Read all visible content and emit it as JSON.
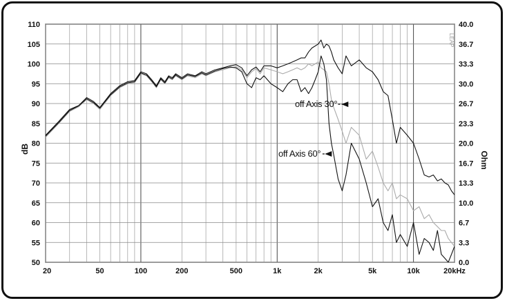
{
  "chart_data": {
    "type": "line",
    "title": "",
    "xlabel": "",
    "ylabel": "dB",
    "y2label": "Ohm",
    "x_scale": "log",
    "xlim": [
      20,
      20000
    ],
    "ylim": [
      50,
      110
    ],
    "y2lim": [
      0.0,
      40.0
    ],
    "grid": true,
    "x_ticks": [
      20,
      50,
      100,
      200,
      500,
      1000,
      2000,
      5000,
      10000,
      20000
    ],
    "x_tick_labels": [
      "20",
      "50",
      "100",
      "200",
      "500",
      "1k",
      "2k",
      "5k",
      "10k",
      "20kHz"
    ],
    "y_ticks": [
      50,
      55,
      60,
      65,
      70,
      75,
      80,
      85,
      90,
      95,
      100,
      105,
      110
    ],
    "y2_tick_labels": [
      "0.0",
      "3.3",
      "6.7",
      "10.0",
      "13.3",
      "16.7",
      "20.0",
      "23.3",
      "26.7",
      "30.0",
      "33.3",
      "36.7",
      "40.0"
    ],
    "corner_label": "LEAP",
    "annotations": [
      {
        "text": "off Axis 30°",
        "freq": 1350,
        "db": 89.8,
        "arrow_to_freq": 2800
      },
      {
        "text": "off Axis 60°",
        "freq": 1020,
        "db": 77.3,
        "arrow_to_freq": 2150
      }
    ],
    "series": [
      {
        "color": "#111111",
        "x": [
          20,
          25,
          30,
          35,
          40,
          45,
          50,
          60,
          70,
          80,
          90,
          100,
          110,
          120,
          130,
          140,
          150,
          160,
          170,
          180,
          200,
          220,
          250,
          280,
          300,
          350,
          400,
          450,
          500,
          550,
          600,
          650,
          700,
          750,
          800,
          900,
          1000,
          1100,
          1200,
          1300,
          1400,
          1500,
          1600,
          1700,
          1800,
          1900,
          2000,
          2100,
          2200,
          2300,
          2400,
          2500,
          2600,
          2800,
          3000,
          3200,
          3500,
          4000,
          4500,
          5000,
          5500,
          6000,
          6500,
          7000,
          7500,
          8000,
          9000,
          10000,
          11000,
          12000,
          13000,
          14000,
          15000,
          16000,
          17000,
          18000,
          19000,
          20000
        ],
        "y": [
          82,
          85.5,
          88.5,
          89.5,
          91.5,
          90.5,
          89,
          92.5,
          94.5,
          95.5,
          95.8,
          98,
          97.5,
          96,
          94.5,
          96.5,
          95.5,
          97,
          96.5,
          97.5,
          96.5,
          97.5,
          97,
          98,
          97.5,
          98.5,
          99,
          99.5,
          99.8,
          99,
          97,
          98.5,
          99.2,
          98,
          99.5,
          99.5,
          99,
          99.5,
          100,
          100.5,
          101,
          101.5,
          101.5,
          103,
          104,
          104.5,
          105,
          106,
          104,
          105,
          104.5,
          103,
          101,
          99,
          97.5,
          102,
          99.5,
          101,
          99,
          98,
          96,
          93,
          92,
          86,
          80,
          84,
          82,
          80,
          76,
          72,
          71.5,
          72,
          70.5,
          71,
          70,
          69.5,
          68,
          67
        ]
      },
      {
        "color": "#aaaaaa",
        "x": [
          20,
          25,
          30,
          35,
          40,
          45,
          50,
          60,
          70,
          80,
          90,
          100,
          110,
          120,
          130,
          140,
          150,
          160,
          170,
          180,
          200,
          220,
          250,
          280,
          300,
          350,
          400,
          450,
          500,
          550,
          600,
          650,
          700,
          750,
          800,
          900,
          1000,
          1100,
          1200,
          1300,
          1400,
          1500,
          1600,
          1700,
          1800,
          1900,
          2000,
          2100,
          2200,
          2300,
          2400,
          2500,
          2600,
          2800,
          3000,
          3200,
          3500,
          4000,
          4500,
          5000,
          5500,
          6000,
          6500,
          7000,
          7500,
          8000,
          9000,
          10000,
          11000,
          12000,
          13000,
          14000,
          15000,
          16000,
          17000,
          18000,
          19000,
          20000
        ],
        "y": [
          81.5,
          85,
          88,
          89.2,
          91,
          90,
          88.5,
          92,
          94,
          95,
          95.3,
          97.5,
          97,
          95.5,
          94,
          96,
          95,
          96.5,
          96,
          97,
          96,
          97,
          96.5,
          97.5,
          97,
          98,
          98.5,
          99,
          99.3,
          98.5,
          96.5,
          98,
          98.8,
          97.5,
          99,
          98.5,
          98,
          97.5,
          98,
          98.5,
          99,
          98.5,
          99,
          100,
          99.5,
          100,
          100.5,
          99,
          98.5,
          98,
          95,
          91,
          89,
          86,
          83,
          80,
          84,
          82,
          76,
          78,
          74,
          70,
          68,
          70,
          66,
          67,
          66,
          63,
          64,
          61,
          62,
          60,
          59,
          58,
          58,
          56,
          55,
          54
        ]
      },
      {
        "color": "#111111",
        "x": [
          20,
          25,
          30,
          35,
          40,
          45,
          50,
          60,
          70,
          80,
          90,
          100,
          110,
          120,
          130,
          140,
          150,
          160,
          170,
          180,
          200,
          220,
          250,
          280,
          300,
          350,
          400,
          450,
          500,
          550,
          600,
          650,
          700,
          750,
          800,
          900,
          1000,
          1100,
          1200,
          1300,
          1400,
          1500,
          1600,
          1700,
          1800,
          1900,
          2000,
          2100,
          2200,
          2300,
          2400,
          2500,
          2600,
          2800,
          3000,
          3200,
          3500,
          4000,
          4500,
          5000,
          5500,
          6000,
          6500,
          7000,
          7500,
          8000,
          9000,
          10000,
          11000,
          12000,
          13000,
          14000,
          15000,
          16000,
          17000,
          18000,
          19000,
          20000
        ],
        "y": [
          81.8,
          85.2,
          88.2,
          89.4,
          91.2,
          90.2,
          88.8,
          92.2,
          94.2,
          95.2,
          95.5,
          97.7,
          97.2,
          95.7,
          94.2,
          96.2,
          95.2,
          96.7,
          96.2,
          97.2,
          96.2,
          97.2,
          96.8,
          97.7,
          97.2,
          98.2,
          98.8,
          99.2,
          99,
          98,
          95,
          94,
          96.5,
          96,
          97,
          95,
          94,
          93,
          95,
          96,
          96,
          93,
          94,
          92.5,
          94,
          96,
          98,
          102,
          100,
          96,
          85,
          80,
          77,
          71,
          68,
          72,
          80,
          76,
          70,
          64,
          66,
          60,
          58,
          62,
          55,
          57,
          54,
          60,
          52,
          56,
          55,
          53,
          58,
          52,
          51,
          50,
          52,
          54
        ]
      }
    ]
  }
}
